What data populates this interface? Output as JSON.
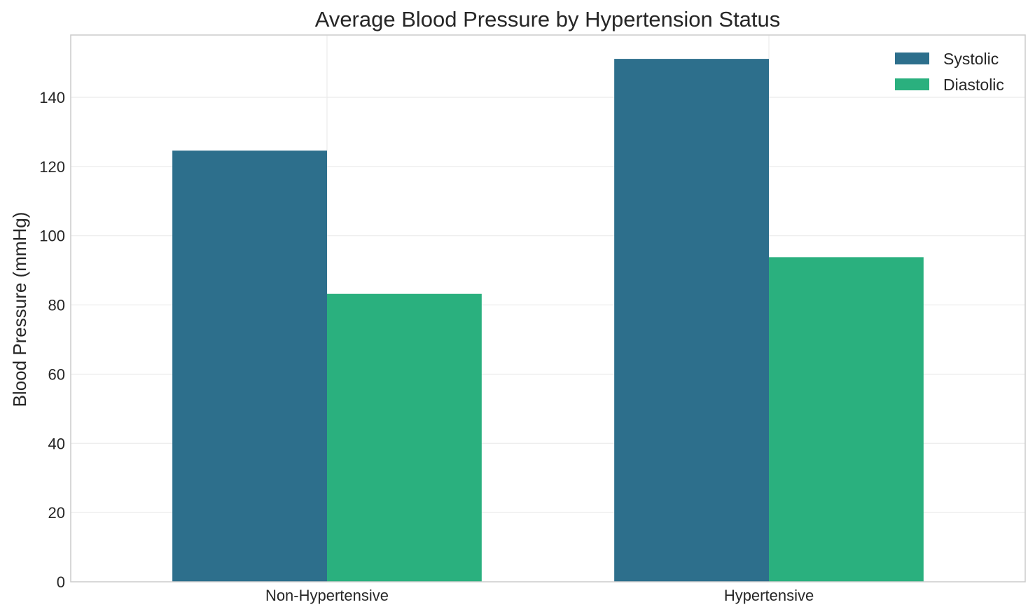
{
  "chart_data": {
    "type": "bar",
    "title": "Average Blood Pressure by Hypertension Status",
    "xlabel": "",
    "ylabel": "Blood Pressure (mmHg)",
    "categories": [
      "Non-Hypertensive",
      "Hypertensive"
    ],
    "series": [
      {
        "name": "Systolic",
        "values": [
          124.6,
          151.1
        ],
        "color": "#2d6f8c"
      },
      {
        "name": "Diastolic",
        "values": [
          83.2,
          93.8
        ],
        "color": "#2ab07e"
      }
    ],
    "ylim": [
      0,
      158
    ],
    "yticks": [
      0,
      20,
      40,
      60,
      80,
      100,
      120,
      140
    ],
    "grid": true,
    "legend_position": "top-right"
  }
}
